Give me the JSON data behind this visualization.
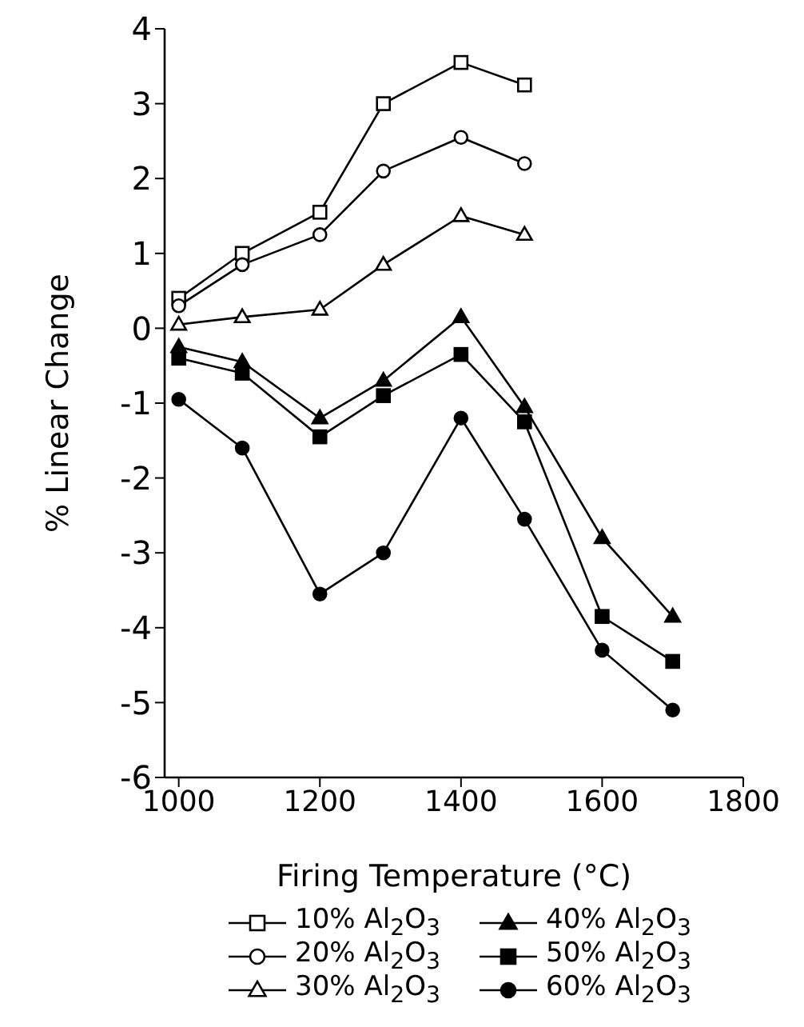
{
  "chart_data": {
    "type": "line",
    "xlabel": "Firing Temperature (°C)",
    "ylabel": "% Linear Change",
    "xlim": [
      980,
      1800
    ],
    "xticks": [
      1000,
      1200,
      1400,
      1600,
      1800
    ],
    "ylim": [
      -6,
      4
    ],
    "yticks": [
      -6,
      -5,
      -4,
      -3,
      -2,
      -1,
      0,
      1,
      2,
      3,
      4
    ],
    "grid": false,
    "legend": "bottom",
    "line_style": "solid",
    "series": [
      {
        "name": "10% Al$_{2}$O$_{3}$",
        "color": "#000000",
        "marker": "square",
        "x": [
          1000,
          1090,
          1200,
          1290,
          1400,
          1490
        ],
        "values": [
          0.4,
          1.0,
          1.55,
          3.0,
          3.55,
          3.25
        ]
      },
      {
        "name": "20% Al$_{2}$O$_{3}$",
        "color": "#000000",
        "marker": "circle",
        "x": [
          1000,
          1090,
          1200,
          1290,
          1400,
          1490
        ],
        "values": [
          0.3,
          0.85,
          1.25,
          2.1,
          2.55,
          2.2
        ]
      },
      {
        "name": "30% Al$_{2}$O$_{3}$",
        "color": "#000000",
        "marker": "triangle",
        "x": [
          1000,
          1090,
          1200,
          1290,
          1400,
          1490
        ],
        "values": [
          0.05,
          0.15,
          0.25,
          0.85,
          1.5,
          1.25
        ]
      },
      {
        "name": "40% Al$_{2}$O$_{3}$",
        "color": "#000000",
        "marker": "triangle",
        "x": [
          1000,
          1090,
          1200,
          1290,
          1400,
          1490,
          1600,
          1700
        ],
        "values": [
          -0.25,
          -0.45,
          -1.2,
          -0.7,
          0.15,
          -1.05,
          -2.8,
          -3.85
        ]
      },
      {
        "name": "50% Al$_{2}$O$_{3}$",
        "color": "#000000",
        "marker": "square",
        "x": [
          1000,
          1090,
          1200,
          1290,
          1400,
          1490,
          1600,
          1700
        ],
        "values": [
          -0.4,
          -0.6,
          -1.45,
          -0.9,
          -0.35,
          -1.25,
          -3.85,
          -4.45
        ]
      },
      {
        "name": "60% Al$_{2}$O$_{3}$",
        "color": "#000000",
        "marker": "circle",
        "x": [
          1000,
          1090,
          1200,
          1290,
          1400,
          1490,
          1600,
          1700
        ],
        "values": [
          -0.95,
          -1.6,
          -3.55,
          -3.0,
          -1.2,
          -2.55,
          -4.3,
          -5.1
        ]
      }
    ]
  }
}
